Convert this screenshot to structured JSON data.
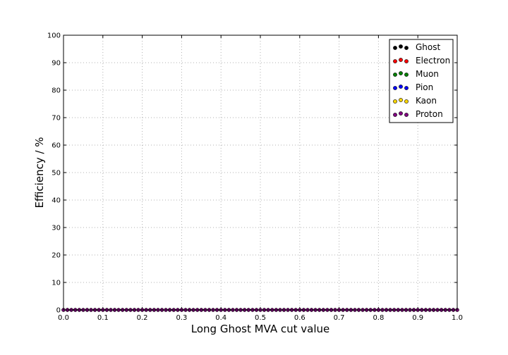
{
  "chart_data": {
    "type": "scatter",
    "title": "",
    "xlabel": "Long Ghost MVA cut value",
    "ylabel": "Efficiency / %",
    "xlim": [
      0.0,
      1.0
    ],
    "ylim": [
      0,
      100
    ],
    "x_ticks": [
      "0.0",
      "0.1",
      "0.2",
      "0.3",
      "0.4",
      "0.5",
      "0.6",
      "0.7",
      "0.8",
      "0.9",
      "1.0"
    ],
    "y_ticks": [
      "0",
      "10",
      "20",
      "30",
      "40",
      "50",
      "60",
      "70",
      "80",
      "90",
      "100"
    ],
    "grid": true,
    "legend_position": "top-right",
    "x_step": 0.01,
    "x_count": 101,
    "series": [
      {
        "name": "Ghost",
        "color": "#000000",
        "value": 0
      },
      {
        "name": "Electron",
        "color": "#ff0000",
        "value": 0
      },
      {
        "name": "Muon",
        "color": "#008000",
        "value": 0
      },
      {
        "name": "Pion",
        "color": "#0000ff",
        "value": 0
      },
      {
        "name": "Kaon",
        "color": "#ffd700",
        "value": 0
      },
      {
        "name": "Proton",
        "color": "#800080",
        "value": 0
      }
    ]
  }
}
